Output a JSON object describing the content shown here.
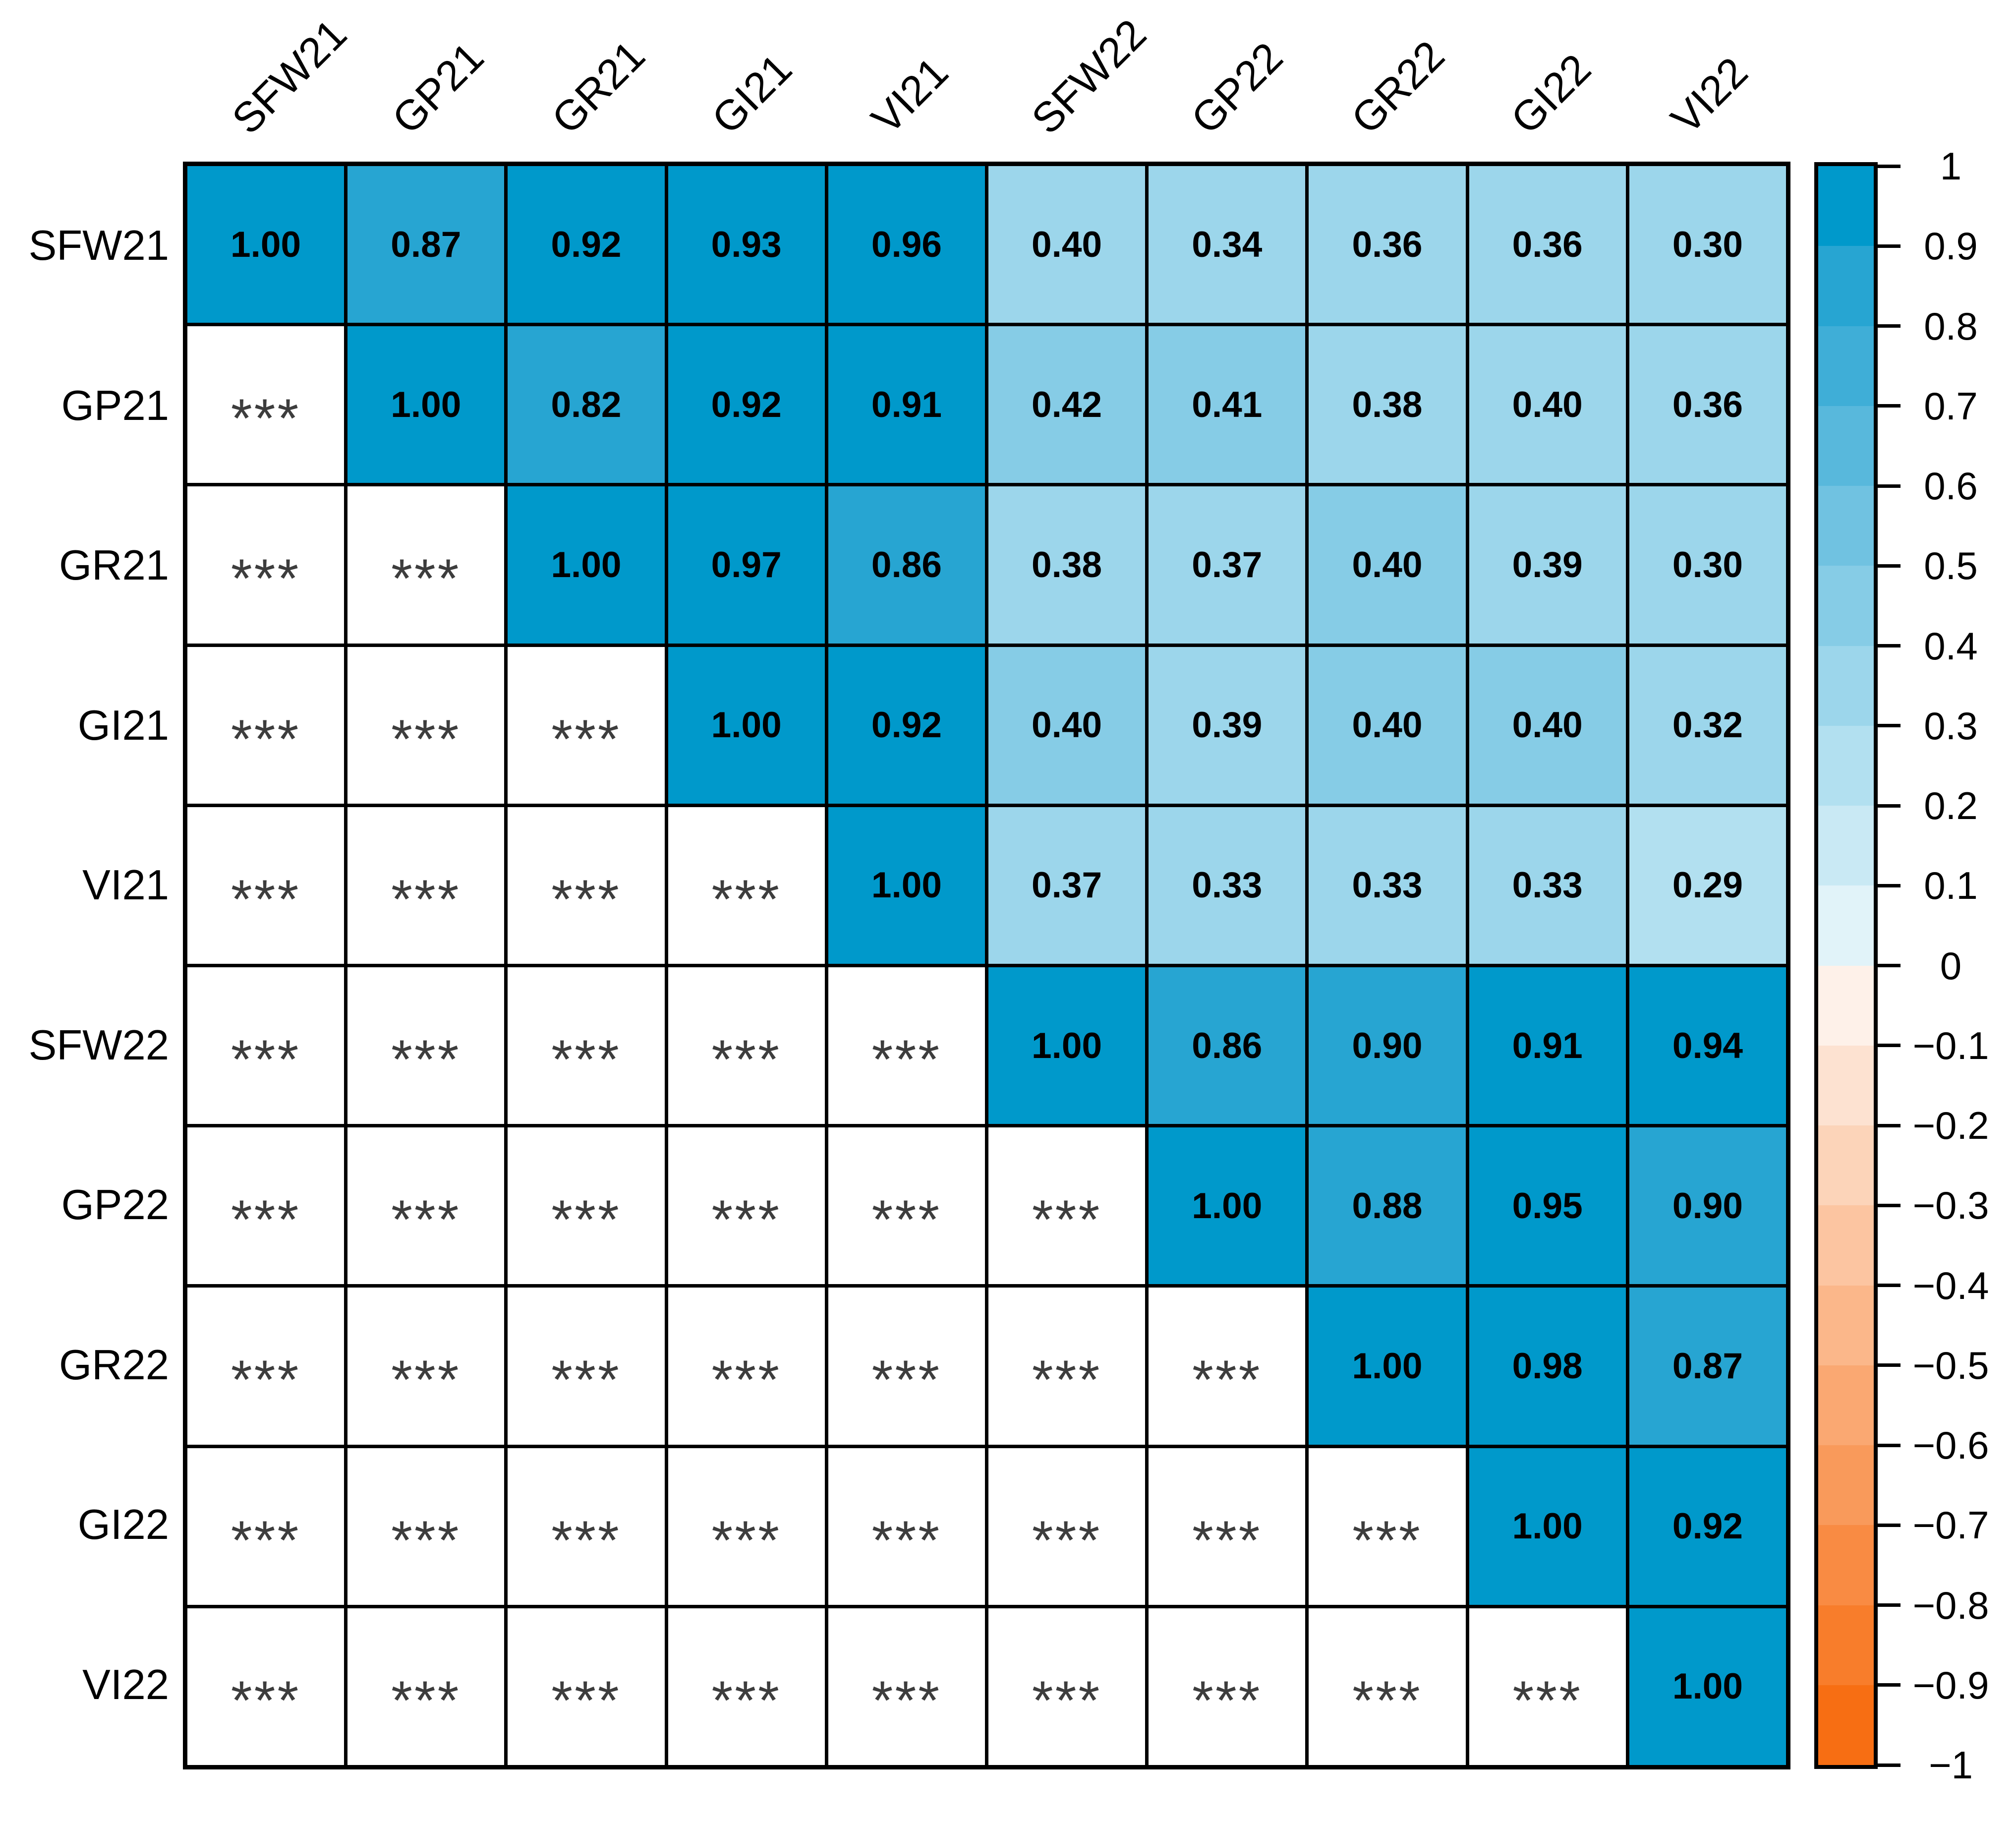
{
  "chart_data": {
    "type": "heatmap",
    "subtype": "correlation-matrix",
    "title": "",
    "variables": [
      "SFW21",
      "GP21",
      "GR21",
      "GI21",
      "VI21",
      "SFW22",
      "GP22",
      "GR22",
      "GI22",
      "VI22"
    ],
    "upper_triangle_correlations": [
      [
        1.0,
        0.87,
        0.92,
        0.93,
        0.96,
        0.4,
        0.34,
        0.36,
        0.36,
        0.3
      ],
      [
        null,
        1.0,
        0.82,
        0.92,
        0.91,
        0.42,
        0.41,
        0.38,
        0.4,
        0.36
      ],
      [
        null,
        null,
        1.0,
        0.97,
        0.86,
        0.38,
        0.37,
        0.4,
        0.39,
        0.3
      ],
      [
        null,
        null,
        null,
        1.0,
        0.92,
        0.4,
        0.39,
        0.4,
        0.4,
        0.32
      ],
      [
        null,
        null,
        null,
        null,
        1.0,
        0.37,
        0.33,
        0.33,
        0.33,
        0.29
      ],
      [
        null,
        null,
        null,
        null,
        null,
        1.0,
        0.86,
        0.9,
        0.91,
        0.94
      ],
      [
        null,
        null,
        null,
        null,
        null,
        null,
        1.0,
        0.88,
        0.95,
        0.9
      ],
      [
        null,
        null,
        null,
        null,
        null,
        null,
        null,
        1.0,
        0.98,
        0.87
      ],
      [
        null,
        null,
        null,
        null,
        null,
        null,
        null,
        null,
        1.0,
        0.92
      ],
      [
        null,
        null,
        null,
        null,
        null,
        null,
        null,
        null,
        null,
        1.0
      ]
    ],
    "lower_triangle_marker": "***",
    "colorbar_range": [
      -1,
      1
    ],
    "colorbar_step": 0.1,
    "legend_position": "right"
  },
  "grid": {
    "significance_marker": "***",
    "rows": [
      {
        "label": "SFW21",
        "cells": [
          {
            "text": "1.00",
            "band": 0
          },
          {
            "text": "0.87",
            "band": 1
          },
          {
            "text": "0.92",
            "band": 0
          },
          {
            "text": "0.93",
            "band": 0
          },
          {
            "text": "0.96",
            "band": 0
          },
          {
            "text": "0.40",
            "band": 6
          },
          {
            "text": "0.34",
            "band": 6
          },
          {
            "text": "0.36",
            "band": 6
          },
          {
            "text": "0.36",
            "band": 6
          },
          {
            "text": "0.30",
            "band": 6
          }
        ]
      },
      {
        "label": "GP21",
        "cells": [
          {
            "sig": true
          },
          {
            "text": "1.00",
            "band": 0
          },
          {
            "text": "0.82",
            "band": 1
          },
          {
            "text": "0.92",
            "band": 0
          },
          {
            "text": "0.91",
            "band": 0
          },
          {
            "text": "0.42",
            "band": 5
          },
          {
            "text": "0.41",
            "band": 5
          },
          {
            "text": "0.38",
            "band": 6
          },
          {
            "text": "0.40",
            "band": 6
          },
          {
            "text": "0.36",
            "band": 6
          }
        ]
      },
      {
        "label": "GR21",
        "cells": [
          {
            "sig": true
          },
          {
            "sig": true
          },
          {
            "text": "1.00",
            "band": 0
          },
          {
            "text": "0.97",
            "band": 0
          },
          {
            "text": "0.86",
            "band": 1
          },
          {
            "text": "0.38",
            "band": 6
          },
          {
            "text": "0.37",
            "band": 6
          },
          {
            "text": "0.40",
            "band": 5
          },
          {
            "text": "0.39",
            "band": 6
          },
          {
            "text": "0.30",
            "band": 6
          }
        ]
      },
      {
        "label": "GI21",
        "cells": [
          {
            "sig": true
          },
          {
            "sig": true
          },
          {
            "sig": true
          },
          {
            "text": "1.00",
            "band": 0
          },
          {
            "text": "0.92",
            "band": 0
          },
          {
            "text": "0.40",
            "band": 5
          },
          {
            "text": "0.39",
            "band": 6
          },
          {
            "text": "0.40",
            "band": 5
          },
          {
            "text": "0.40",
            "band": 5
          },
          {
            "text": "0.32",
            "band": 6
          }
        ]
      },
      {
        "label": "VI21",
        "cells": [
          {
            "sig": true
          },
          {
            "sig": true
          },
          {
            "sig": true
          },
          {
            "sig": true
          },
          {
            "text": "1.00",
            "band": 0
          },
          {
            "text": "0.37",
            "band": 6
          },
          {
            "text": "0.33",
            "band": 6
          },
          {
            "text": "0.33",
            "band": 6
          },
          {
            "text": "0.33",
            "band": 6
          },
          {
            "text": "0.29",
            "band": 7
          }
        ]
      },
      {
        "label": "SFW22",
        "cells": [
          {
            "sig": true
          },
          {
            "sig": true
          },
          {
            "sig": true
          },
          {
            "sig": true
          },
          {
            "sig": true
          },
          {
            "text": "1.00",
            "band": 0
          },
          {
            "text": "0.86",
            "band": 1
          },
          {
            "text": "0.90",
            "band": 1
          },
          {
            "text": "0.91",
            "band": 0
          },
          {
            "text": "0.94",
            "band": 0
          }
        ]
      },
      {
        "label": "GP22",
        "cells": [
          {
            "sig": true
          },
          {
            "sig": true
          },
          {
            "sig": true
          },
          {
            "sig": true
          },
          {
            "sig": true
          },
          {
            "sig": true
          },
          {
            "text": "1.00",
            "band": 0
          },
          {
            "text": "0.88",
            "band": 1
          },
          {
            "text": "0.95",
            "band": 0
          },
          {
            "text": "0.90",
            "band": 1
          }
        ]
      },
      {
        "label": "GR22",
        "cells": [
          {
            "sig": true
          },
          {
            "sig": true
          },
          {
            "sig": true
          },
          {
            "sig": true
          },
          {
            "sig": true
          },
          {
            "sig": true
          },
          {
            "sig": true
          },
          {
            "text": "1.00",
            "band": 0
          },
          {
            "text": "0.98",
            "band": 0
          },
          {
            "text": "0.87",
            "band": 1
          }
        ]
      },
      {
        "label": "GI22",
        "cells": [
          {
            "sig": true
          },
          {
            "sig": true
          },
          {
            "sig": true
          },
          {
            "sig": true
          },
          {
            "sig": true
          },
          {
            "sig": true
          },
          {
            "sig": true
          },
          {
            "sig": true
          },
          {
            "text": "1.00",
            "band": 0
          },
          {
            "text": "0.92",
            "band": 0
          }
        ]
      },
      {
        "label": "VI22",
        "cells": [
          {
            "sig": true
          },
          {
            "sig": true
          },
          {
            "sig": true
          },
          {
            "sig": true
          },
          {
            "sig": true
          },
          {
            "sig": true
          },
          {
            "sig": true
          },
          {
            "sig": true
          },
          {
            "sig": true
          },
          {
            "text": "1.00",
            "band": 0
          }
        ]
      }
    ]
  },
  "column_labels": [
    "SFW21",
    "GP21",
    "GR21",
    "GI21",
    "VI21",
    "SFW22",
    "GP22",
    "GR22",
    "GI22",
    "VI22"
  ],
  "colorbar": {
    "tick_labels": [
      "1",
      "0.9",
      "0.8",
      "0.7",
      "0.6",
      "0.5",
      "0.4",
      "0.3",
      "0.2",
      "0.1",
      "0",
      "−0.1",
      "−0.2",
      "−0.3",
      "−0.4",
      "−0.5",
      "−0.6",
      "−0.7",
      "−0.8",
      "−0.9",
      "−1"
    ],
    "band_colors": [
      "#0099CB",
      "#27A5D2",
      "#3FAED7",
      "#58B8DC",
      "#70C2E1",
      "#86CCE6",
      "#9CD6EB",
      "#B2E0F0",
      "#C9E9F4",
      "#E1F3F9",
      "#FEF1E9",
      "#FDE2D1",
      "#FCD4B9",
      "#FCC5A1",
      "#FBB78A",
      "#FAA872",
      "#F99A5B",
      "#F98B43",
      "#F87D2B",
      "#F76E13"
    ]
  },
  "colors": {
    "cell_value_text": "#000000",
    "significance_marker": "#3d3d3d",
    "grid_border": "#000000",
    "background": "#ffffff",
    "empty_cell": "#ffffff"
  }
}
